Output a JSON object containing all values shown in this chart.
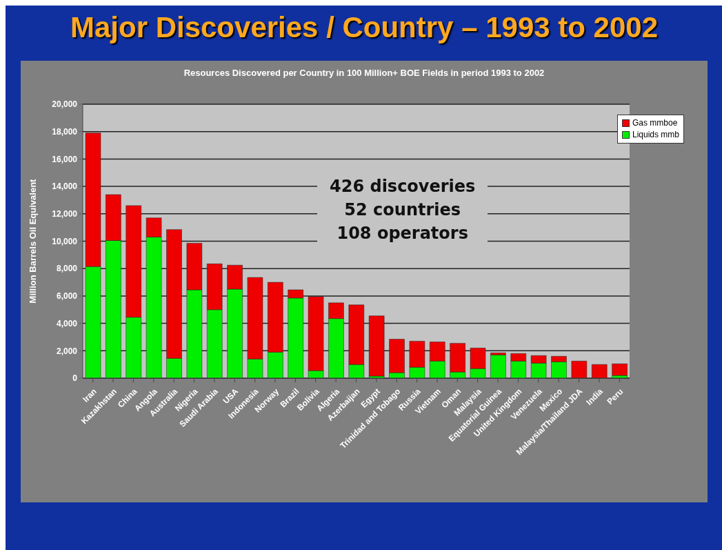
{
  "chart_data": {
    "type": "bar",
    "title": "Major Discoveries / Country – 1993 to 2002",
    "subtitle": "Resources Discovered per Country in 100 Million+ BOE Fields in period 1993 to 2002",
    "ylabel": "Million Barrels Oil Equivalent",
    "categories": [
      "Iran",
      "Kazakhstan",
      "China",
      "Angola",
      "Australia",
      "Nigeria",
      "Saudi Arabia",
      "USA",
      "Indonesia",
      "Norway",
      "Brazil",
      "Bolivia",
      "Algeria",
      "Azerbaijan",
      "Egypt",
      "Trinidad and Tobago",
      "Russia",
      "Vietnam",
      "Oman",
      "Malaysia",
      "Equatorial Guinea",
      "United Kingdom",
      "Venezuela",
      "Mexico",
      "Malaysia/Thailand JDA",
      "India",
      "Peru"
    ],
    "stacked": true,
    "series": [
      {
        "name": "Liquids mmb",
        "color": "#00ee00",
        "values": [
          8150,
          10050,
          4450,
          10300,
          1450,
          6450,
          5000,
          6500,
          1400,
          1900,
          5850,
          550,
          4350,
          1000,
          150,
          400,
          800,
          1250,
          450,
          700,
          1700,
          1250,
          1100,
          1200,
          null,
          null,
          200
        ]
      },
      {
        "name": "Gas mmboe",
        "color": "#ee0000",
        "values": [
          9750,
          3350,
          8150,
          1400,
          9400,
          3400,
          3350,
          1750,
          5950,
          5100,
          600,
          5400,
          1150,
          4350,
          4400,
          2450,
          1900,
          1400,
          2100,
          1500,
          150,
          550,
          550,
          400,
          1250,
          1000,
          850
        ]
      }
    ],
    "ylim": [
      0,
      20000
    ],
    "yticks": [
      {
        "value": 0,
        "label": "0"
      },
      {
        "value": 2000,
        "label": "2,000"
      },
      {
        "value": 4000,
        "label": "4,000"
      },
      {
        "value": 6000,
        "label": "6,000"
      },
      {
        "value": 8000,
        "label": "8,000"
      },
      {
        "value": 10000,
        "label": "10,000"
      },
      {
        "value": 12000,
        "label": "12,000"
      },
      {
        "value": 14000,
        "label": "14,000"
      },
      {
        "value": 16000,
        "label": "16,000"
      },
      {
        "value": 18000,
        "label": "18,000"
      },
      {
        "value": 20000,
        "label": "20,000"
      }
    ],
    "grid": "y",
    "legend": "top right",
    "annotations": [
      "426 discoveries",
      "52 countries",
      "108 operators"
    ]
  }
}
